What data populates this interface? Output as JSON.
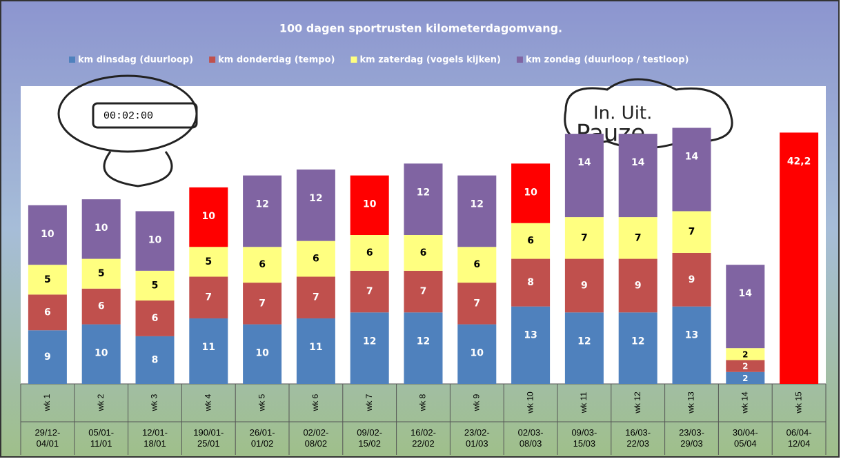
{
  "chart_data": {
    "type": "stacked-bar",
    "title": "100 dagen sportrusten kilometerdagomvang.",
    "categories": [
      "wk 1",
      "wk 2",
      "wk 3",
      "wk 4",
      "wk 5",
      "wk 6",
      "wk 7",
      "wk 8",
      "wk 9",
      "wk 10",
      "wk 11",
      "wk 12",
      "wk 13",
      "wk 14",
      "wk 15"
    ],
    "date_labels": [
      "29/12-04/01",
      "05/01-11/01",
      "12/01-18/01",
      "190/01-25/01",
      "26/01-01/02",
      "02/02-08/02",
      "09/02-15/02",
      "16/02-22/02",
      "23/02-01/03",
      "02/03-08/03",
      "09/03-15/03",
      "16/03-22/03",
      "23/03-29/03",
      "30/04-05/04",
      "06/04-12/04"
    ],
    "ylim": [
      0,
      50
    ],
    "series": [
      {
        "name": "km dinsdag (duurloop)",
        "color": "#4f81bd",
        "values": [
          9,
          10,
          8,
          11,
          10,
          11,
          12,
          12,
          10,
          13,
          12,
          12,
          13,
          2,
          null
        ]
      },
      {
        "name": "km  donderdag (tempo)",
        "color": "#c0504d",
        "values": [
          6,
          6,
          6,
          7,
          7,
          7,
          7,
          7,
          7,
          8,
          9,
          9,
          9,
          2,
          null
        ]
      },
      {
        "name": "km zaterdag (vogels kijken)",
        "color": "#ffff80",
        "values": [
          5,
          5,
          5,
          5,
          6,
          6,
          6,
          6,
          6,
          6,
          7,
          7,
          7,
          2,
          null
        ]
      },
      {
        "name": "km zondag (duurloop / testloop)",
        "color": "#8064a2",
        "values": [
          10,
          10,
          10,
          10,
          12,
          12,
          10,
          12,
          12,
          10,
          14,
          14,
          14,
          14,
          42.2
        ],
        "value_labels": [
          "10",
          "10",
          "10",
          "10",
          "12",
          "12",
          "10",
          "12",
          "12",
          "10",
          "14",
          "14",
          "14",
          "14",
          "42,2"
        ],
        "point_colors": [
          "#8064a2",
          "#8064a2",
          "#8064a2",
          "#ff0000",
          "#8064a2",
          "#8064a2",
          "#ff0000",
          "#8064a2",
          "#8064a2",
          "#ff0000",
          "#8064a2",
          "#8064a2",
          "#8064a2",
          "#8064a2",
          "#ff0000"
        ]
      }
    ]
  }
}
